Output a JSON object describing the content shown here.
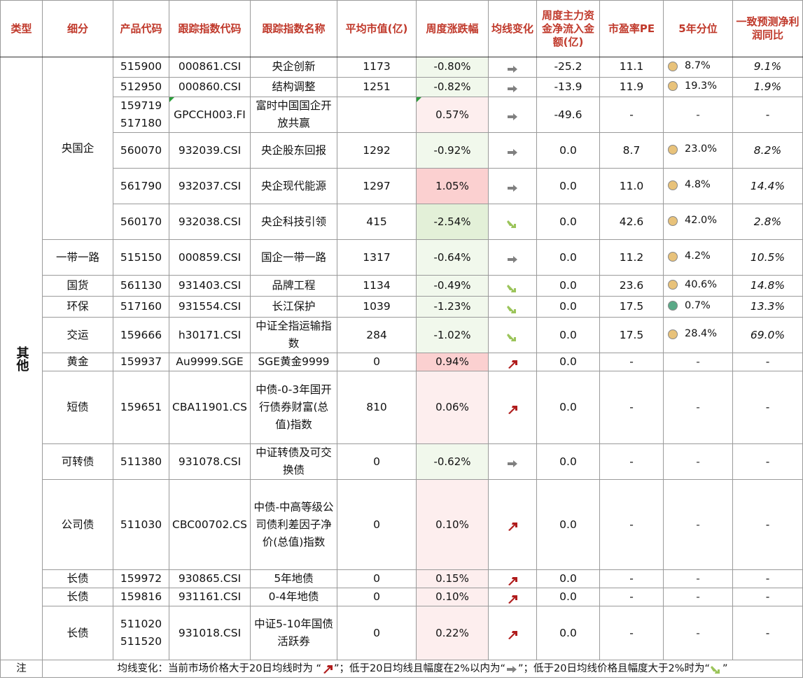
{
  "headers": [
    "类型",
    "细分",
    "产品代码",
    "跟踪指数代码",
    "跟踪指数名称",
    "平均市值(亿)",
    "周度涨跌幅",
    "均线变化",
    "周度主力资金净流入金额(亿)",
    "市盈率PE",
    "5年分位",
    "一致预测净利润同比"
  ],
  "category": "其他",
  "colors": {
    "header_red": "#c0392b",
    "neg_bg_light": "#f1f8ec",
    "neg_bg_mid": "#e3f0d8",
    "pos_bg_light": "#fdeeee",
    "pos_bg_mid": "#fbd0d0",
    "dot_orange": "#e8c27a",
    "dot_green": "#5aa987",
    "arrow_up": "#b01c1c",
    "arrow_flat": "#808080",
    "arrow_down": "#9bc45a"
  },
  "groups": [
    {
      "label": "央国企",
      "rows": [
        {
          "code": "515900",
          "index_code": "000861.CSI",
          "index_name": "央企创新",
          "mcap": "1173",
          "chg": "-0.80%",
          "ma": "flat-arrow",
          "flow": "-25.2",
          "pe": "11.1",
          "pct": "8.7%",
          "dot": "orange",
          "growth": "9.1%"
        },
        {
          "code": "512950",
          "index_code": "000860.CSI",
          "index_name": "结构调整",
          "mcap": "1251",
          "chg": "-0.82%",
          "ma": "flat-arrow",
          "flow": "-13.9",
          "pe": "11.9",
          "pct": "19.3%",
          "dot": "orange",
          "growth": "1.9%"
        },
        {
          "code": "159719\n517180",
          "index_code": "GPCCH003.FI",
          "index_name": "富时中国国企开放共赢",
          "mcap": "",
          "chg": "0.57%",
          "ma": "flat-arrow",
          "flow": "-49.6",
          "pe": "-",
          "pct": "-",
          "dot": "",
          "growth": "-"
        },
        {
          "code": "560070",
          "index_code": "932039.CSI",
          "index_name": "央企股东回报",
          "mcap": "1292",
          "chg": "-0.92%",
          "ma": "flat-arrow",
          "flow": "0.0",
          "pe": "8.7",
          "pct": "23.0%",
          "dot": "orange",
          "growth": "8.2%"
        },
        {
          "code": "561790",
          "index_code": "932037.CSI",
          "index_name": "央企现代能源",
          "mcap": "1297",
          "chg": "1.05%",
          "ma": "flat-arrow",
          "flow": "0.0",
          "pe": "11.0",
          "pct": "4.8%",
          "dot": "orange",
          "growth": "14.4%"
        },
        {
          "code": "560170",
          "index_code": "932038.CSI",
          "index_name": "央企科技引领",
          "mcap": "415",
          "chg": "-2.54%",
          "ma": "down-arrow",
          "flow": "0.0",
          "pe": "42.6",
          "pct": "42.0%",
          "dot": "orange",
          "growth": "2.8%"
        }
      ]
    },
    {
      "label": "一带一路",
      "rows": [
        {
          "code": "515150",
          "index_code": "000859.CSI",
          "index_name": "国企一带一路",
          "mcap": "1317",
          "chg": "-0.64%",
          "ma": "flat-arrow",
          "flow": "0.0",
          "pe": "11.2",
          "pct": "4.2%",
          "dot": "orange",
          "growth": "10.5%"
        }
      ]
    },
    {
      "label": "国货",
      "rows": [
        {
          "code": "561130",
          "index_code": "931403.CSI",
          "index_name": "品牌工程",
          "mcap": "1134",
          "chg": "-0.49%",
          "ma": "down-arrow",
          "flow": "0.0",
          "pe": "23.6",
          "pct": "40.6%",
          "dot": "orange",
          "growth": "14.8%"
        }
      ]
    },
    {
      "label": "环保",
      "rows": [
        {
          "code": "517160",
          "index_code": "931554.CSI",
          "index_name": "长江保护",
          "mcap": "1039",
          "chg": "-1.23%",
          "ma": "down-arrow",
          "flow": "0.0",
          "pe": "17.5",
          "pct": "0.7%",
          "dot": "green",
          "growth": "13.3%"
        }
      ]
    },
    {
      "label": "交运",
      "rows": [
        {
          "code": "159666",
          "index_code": "h30171.CSI",
          "index_name": "中证全指运输指数",
          "mcap": "284",
          "chg": "-1.02%",
          "ma": "down-arrow",
          "flow": "0.0",
          "pe": "17.5",
          "pct": "28.4%",
          "dot": "orange",
          "growth": "69.0%"
        }
      ]
    },
    {
      "label": "黄金",
      "rows": [
        {
          "code": "159937",
          "index_code": "Au9999.SGE",
          "index_name": "SGE黄金9999",
          "mcap": "0",
          "chg": "0.94%",
          "ma": "up-arrow",
          "flow": "0.0",
          "pe": "-",
          "pct": "-",
          "dot": "",
          "growth": "-"
        }
      ]
    },
    {
      "label": "短债",
      "rows": [
        {
          "code": "159651",
          "index_code": "CBA11901.CS",
          "index_name": "中债-0-3年国开行债券财富(总值)指数",
          "mcap": "810",
          "chg": "0.06%",
          "ma": "up-arrow",
          "flow": "0.0",
          "pe": "-",
          "pct": "-",
          "dot": "",
          "growth": "-"
        }
      ]
    },
    {
      "label": "可转债",
      "rows": [
        {
          "code": "511380",
          "index_code": "931078.CSI",
          "index_name": "中证转债及可交换债",
          "mcap": "0",
          "chg": "-0.62%",
          "ma": "flat-arrow",
          "flow": "0.0",
          "pe": "-",
          "pct": "-",
          "dot": "",
          "growth": "-"
        }
      ]
    },
    {
      "label": "公司债",
      "rows": [
        {
          "code": "511030",
          "index_code": "CBC00702.CS",
          "index_name": "中债-中高等级公司债利差因子净价(总值)指数",
          "mcap": "0",
          "chg": "0.10%",
          "ma": "up-arrow",
          "flow": "0.0",
          "pe": "-",
          "pct": "-",
          "dot": "",
          "growth": "-"
        }
      ]
    },
    {
      "label": "长债",
      "rows": [
        {
          "code": "159972",
          "index_code": "930865.CSI",
          "index_name": "5年地债",
          "mcap": "0",
          "chg": "0.15%",
          "ma": "up-arrow",
          "flow": "0.0",
          "pe": "-",
          "pct": "-",
          "dot": "",
          "growth": "-"
        }
      ]
    },
    {
      "label": "长债",
      "rows": [
        {
          "code": "159816",
          "index_code": "931161.CSI",
          "index_name": "0-4年地债",
          "mcap": "0",
          "chg": "0.10%",
          "ma": "up-arrow",
          "flow": "0.0",
          "pe": "-",
          "pct": "-",
          "dot": "",
          "growth": "-"
        }
      ]
    },
    {
      "label": "长债",
      "rows": [
        {
          "code": "511020\n511520",
          "index_code": "931018.CSI",
          "index_name": "中证5-10年国债活跃券",
          "mcap": "0",
          "chg": "0.22%",
          "ma": "up-arrow",
          "flow": "0.0",
          "pe": "-",
          "pct": "-",
          "dot": "",
          "growth": "-"
        }
      ]
    }
  ],
  "note": {
    "label": "注",
    "part1": "均线变化：当前市场价格大于20日均线时为 “",
    "part2": "”；低于20日均线且幅度在2%以内为“",
    "part3": "”；低于20日均线价格且幅度大于2%时为“",
    "part4": "”"
  }
}
